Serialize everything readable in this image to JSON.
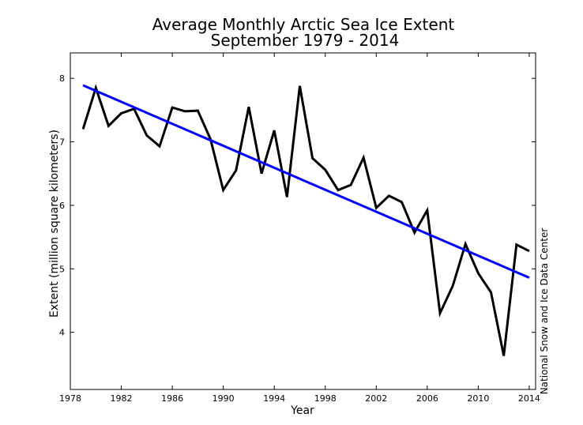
{
  "chart_data": {
    "type": "line",
    "title": "Average Monthly Arctic Sea Ice Extent",
    "subtitle": "September 1979 - 2014",
    "xlabel": "Year",
    "ylabel": "Extent (million square kilometers)",
    "credit": "National Snow and Ice Data Center",
    "xlim": [
      1978,
      2014.5
    ],
    "ylim": [
      3.1,
      8.4
    ],
    "xticks": [
      1978,
      1982,
      1986,
      1990,
      1994,
      1998,
      2002,
      2006,
      2010,
      2014
    ],
    "yticks": [
      4,
      5,
      6,
      7,
      8
    ],
    "grid": false,
    "series": [
      {
        "color": "#000000",
        "x": [
          1979,
          1980,
          1981,
          1982,
          1983,
          1984,
          1985,
          1986,
          1987,
          1988,
          1989,
          1990,
          1991,
          1992,
          1993,
          1994,
          1995,
          1996,
          1997,
          1998,
          1999,
          2000,
          2001,
          2002,
          2003,
          2004,
          2005,
          2006,
          2007,
          2008,
          2009,
          2010,
          2011,
          2012,
          2013,
          2014
        ],
        "values": [
          7.2,
          7.85,
          7.25,
          7.45,
          7.52,
          7.1,
          6.93,
          7.54,
          7.48,
          7.49,
          7.04,
          6.24,
          6.55,
          7.55,
          6.5,
          7.18,
          6.13,
          7.88,
          6.74,
          6.56,
          6.24,
          6.32,
          6.75,
          5.96,
          6.15,
          6.05,
          5.57,
          5.92,
          4.3,
          4.73,
          5.39,
          4.93,
          4.63,
          3.63,
          5.38,
          5.28
        ]
      },
      {
        "color": "#0000ff",
        "x": [
          1979,
          2014
        ],
        "values": [
          7.89,
          4.86
        ]
      }
    ]
  }
}
